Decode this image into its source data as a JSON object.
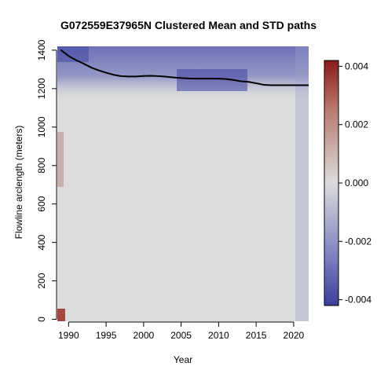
{
  "chart_data": {
    "type": "heatmap",
    "title": "G072559E37965N Clustered Mean and STD paths",
    "xlabel": "Year",
    "ylabel": "Flowline arclength (meters)",
    "xlim": [
      1988.5,
      2022
    ],
    "ylim": [
      -10,
      1420
    ],
    "x_ticks": [
      "1990",
      "1995",
      "2000",
      "2005",
      "2010",
      "2015",
      "2020"
    ],
    "y_ticks": [
      "0",
      "200",
      "400",
      "600",
      "800",
      "1000",
      "1200",
      "1400"
    ],
    "colorbar": {
      "range": [
        -0.0042,
        0.0042
      ],
      "ticks": [
        "0.004",
        "0.002",
        "0.000",
        "-0.002",
        "-0.004"
      ],
      "colors": {
        "low": "#3b3f9a",
        "mid": "#dcdcdc",
        "high": "#8b1a1a"
      }
    },
    "series": [
      {
        "type": "line",
        "x": [
          1989.0,
          1990.0,
          1991.0,
          1992.0,
          1993.0,
          1994.0,
          1995.0,
          1996.0,
          1997.0,
          1998.0,
          1999.0,
          2000.0,
          2001.0,
          2002.0,
          2003.0,
          2004.0,
          2005.0,
          2006.0,
          2007.0,
          2008.0,
          2009.0,
          2010.0,
          2011.0,
          2012.0,
          2013.0,
          2014.0,
          2015.0,
          2016.0,
          2017.0,
          2018.0,
          2019.0,
          2020.0,
          2021.0,
          2022.0
        ],
        "y": [
          1400,
          1370,
          1348,
          1330,
          1310,
          1295,
          1283,
          1272,
          1265,
          1263,
          1263,
          1266,
          1267,
          1265,
          1262,
          1258,
          1255,
          1253,
          1252,
          1252,
          1252,
          1252,
          1250,
          1245,
          1238,
          1235,
          1228,
          1220,
          1218,
          1218,
          1218,
          1218,
          1218,
          1218
        ]
      }
    ]
  }
}
